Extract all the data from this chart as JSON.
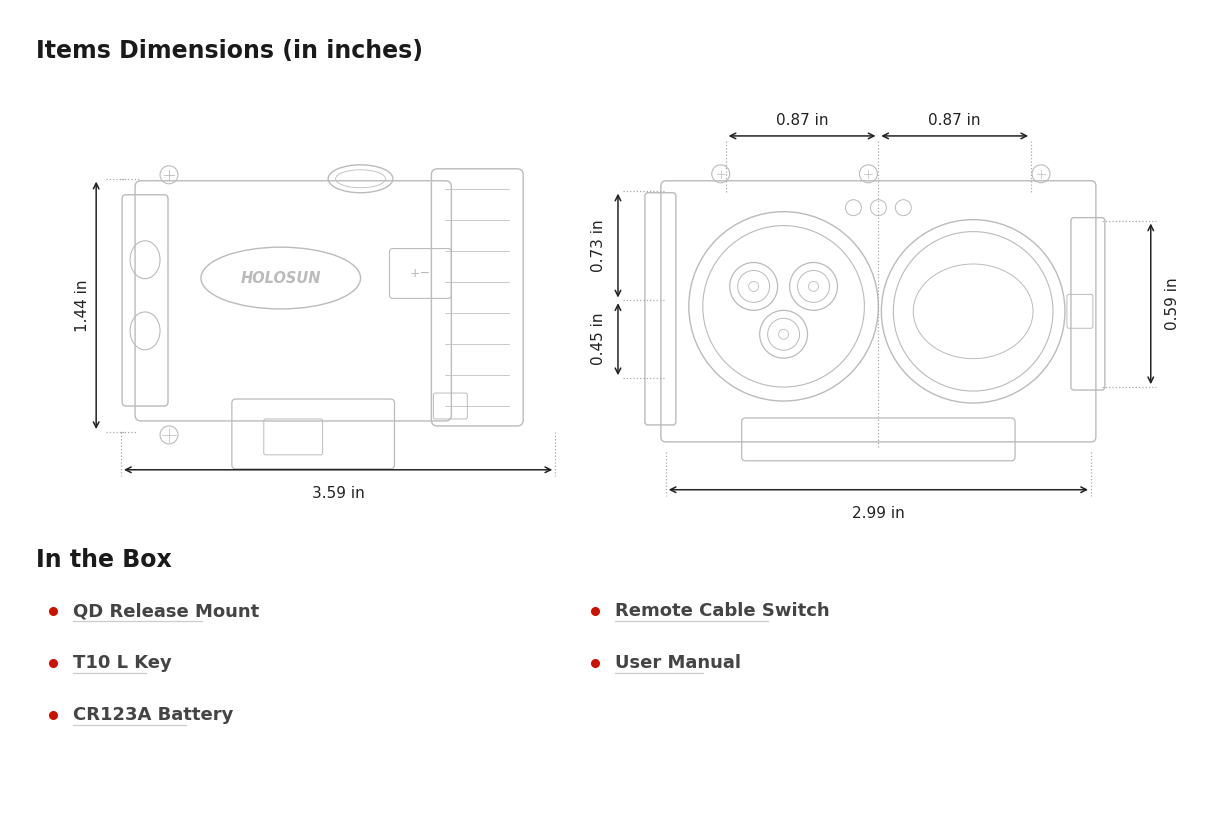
{
  "title": "Items Dimensions (in inches)",
  "title_fontsize": 17,
  "title_fontweight": "bold",
  "title_color": "#1a1a1a",
  "section2_title": "In the Box",
  "section2_fontsize": 17,
  "section2_fontweight": "bold",
  "bullet_color": "#cc1100",
  "bullet_text_color": "#444444",
  "bullet_fontsize": 13,
  "bullet_items_left": [
    "QD Release Mount",
    "T10 L Key",
    "CR123A Battery"
  ],
  "bullet_items_right": [
    "Remote Cable Switch",
    "User Manual"
  ],
  "dim_color": "#222222",
  "dim_fontsize": 11,
  "arrow_color": "#222222",
  "dotted_color": "#aaaaaa",
  "device1_length": "3.59 in",
  "device1_height": "1.44 in",
  "device2_width": "2.99 in",
  "device2_top_left": "0.87 in",
  "device2_top_right": "0.87 in",
  "device2_height_left": "0.73 in",
  "device2_height_sub": "0.45 in",
  "device2_side_height": "0.59 in",
  "bg_color": "#ffffff",
  "line_color": "#bbbbbb",
  "line_lw": 1.0
}
